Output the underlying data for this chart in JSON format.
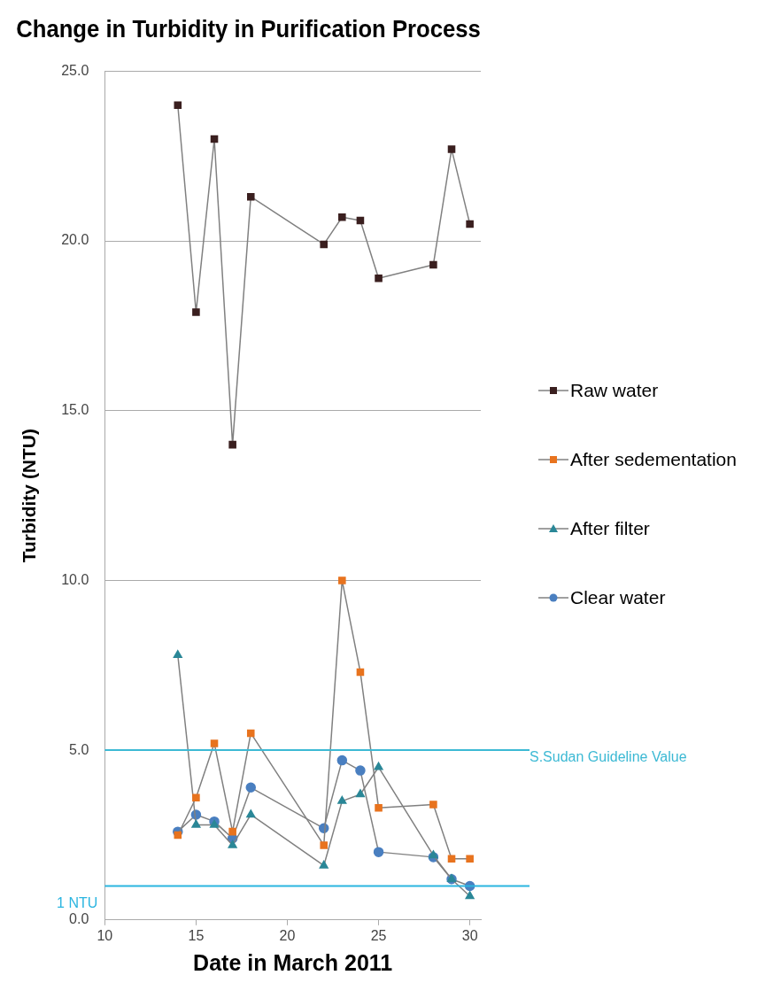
{
  "chart_data": {
    "type": "line",
    "title": "Change in Turbidity in Purification Process",
    "xlabel": "Date in March 2011",
    "ylabel": "Turbidity (NTU)",
    "x": [
      14,
      15,
      16,
      17,
      18,
      22,
      23,
      24,
      25,
      28,
      29,
      30
    ],
    "series": [
      {
        "name": "Raw water",
        "color": "#3a1f1f",
        "marker": "square",
        "values": [
          24.0,
          17.9,
          23.0,
          14.0,
          21.3,
          19.9,
          20.7,
          20.6,
          18.9,
          19.3,
          22.7,
          20.5
        ]
      },
      {
        "name": "After sedementation",
        "color": "#e8731e",
        "marker": "square",
        "values": [
          2.5,
          3.6,
          5.2,
          2.6,
          5.5,
          2.2,
          10.0,
          7.3,
          3.3,
          3.4,
          1.8,
          1.8
        ]
      },
      {
        "name": "After filter",
        "color": "#2a8797",
        "marker": "triangle",
        "values": [
          7.8,
          2.8,
          2.8,
          2.2,
          3.1,
          1.6,
          3.5,
          3.7,
          4.5,
          1.9,
          1.2,
          0.7
        ]
      },
      {
        "name": "Clear water",
        "color": "#4a7fc0",
        "marker": "circle",
        "values": [
          2.6,
          3.1,
          2.9,
          2.4,
          3.9,
          2.7,
          4.7,
          4.4,
          2.0,
          1.85,
          1.2,
          1.0
        ]
      }
    ],
    "xlim": [
      10,
      30.6
    ],
    "xticks": [
      10,
      15,
      20,
      25,
      30
    ],
    "ylim": [
      0,
      25
    ],
    "yticks": [
      {
        "value": 0,
        "label": "0.0"
      },
      {
        "value": 5,
        "label": "5.0"
      },
      {
        "value": 10,
        "label": "10.0"
      },
      {
        "value": 15,
        "label": "15.0"
      },
      {
        "value": 20,
        "label": "20.0"
      },
      {
        "value": 25,
        "label": "25.0"
      }
    ],
    "ref_lines": [
      {
        "axis": "y",
        "value": 5,
        "label": "S.Sudan Guideline Value",
        "color": "#3cb9d4"
      },
      {
        "axis": "y",
        "value": 1,
        "label": "1 NTU",
        "color": "#2bb5e0"
      }
    ],
    "grid": "y",
    "legend": "right",
    "line_style": "solid"
  }
}
